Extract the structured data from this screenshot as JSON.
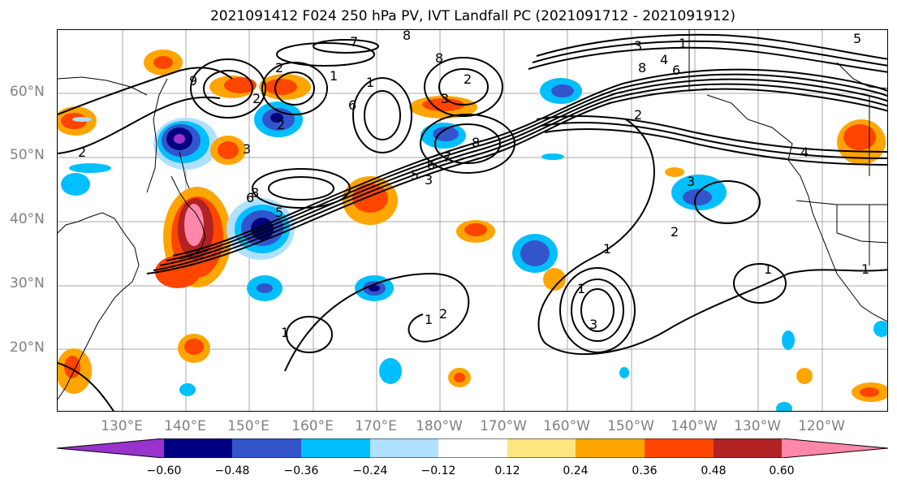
{
  "title": "2021091412 F024 250 hPa PV, IVT Landfall PC (2021091712 - 2021091912)",
  "lat_labels": [
    "60°N",
    "50°N",
    "40°N",
    "30°N",
    "20°N"
  ],
  "lon_labels": [
    "130°E",
    "140°E",
    "150°E",
    "160°E",
    "170°E",
    "180°W",
    "170°W",
    "160°W",
    "150°W",
    "140°W",
    "130°W",
    "120°W"
  ],
  "colorbar": {
    "ticks": [
      "−0.60",
      "−0.48",
      "−0.36",
      "−0.24",
      "−0.12",
      "0.12",
      "0.24",
      "0.36",
      "0.48",
      "0.60"
    ],
    "colors": [
      "#9933cc",
      "#000080",
      "#3355cc",
      "#00bfff",
      "#b0e0ff",
      "#ffffff",
      "#ffe680",
      "#ffa500",
      "#ff4500",
      "#b22222",
      "#ff88aa"
    ]
  },
  "contour_labels": [
    "7",
    "8",
    "3",
    "1",
    "5",
    "2",
    "1",
    "2",
    "8",
    "9",
    "2",
    "1",
    "6",
    "3",
    "8",
    "2",
    "8",
    "4",
    "6",
    "2",
    "3",
    "2",
    "7",
    "5",
    "6",
    "8",
    "5",
    "6",
    "3",
    "3",
    "1",
    "2",
    "1",
    "1",
    "1",
    "2",
    "1",
    "3",
    "1",
    "4"
  ]
}
